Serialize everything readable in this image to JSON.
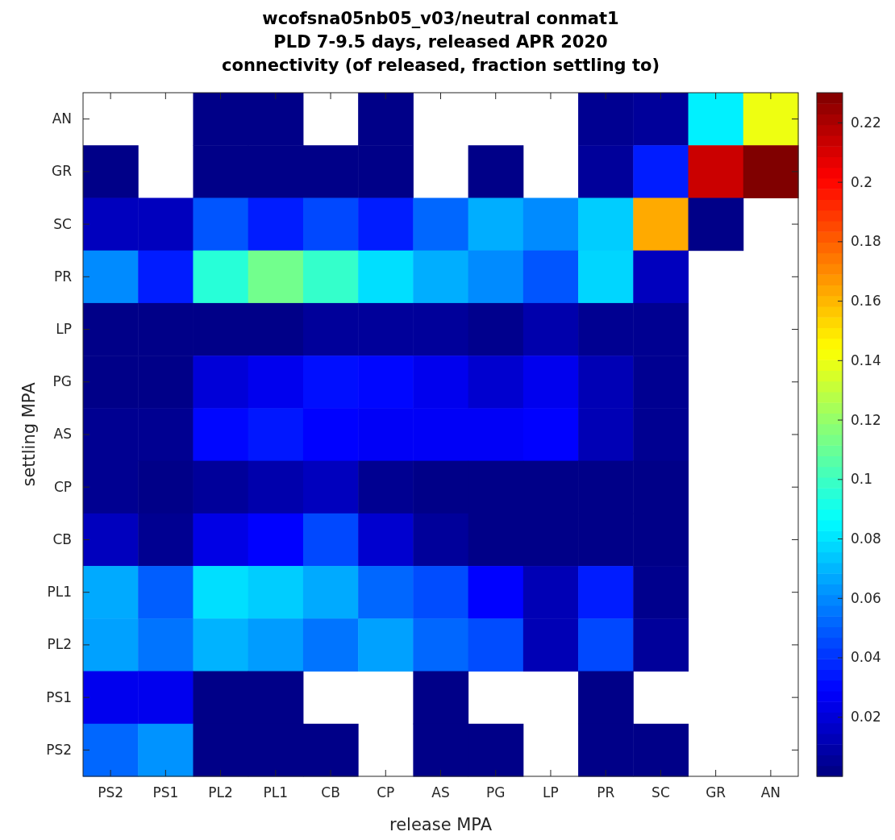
{
  "chart_data": {
    "type": "heatmap",
    "title": "wcofsna05nb05_v03/neutral conmat1\nPLD 7-9.5 days, released APR 2020\nconnectivity (of released, fraction settling to)",
    "xlabel": "release MPA",
    "ylabel": "settling MPA",
    "categories": [
      "PS2",
      "PS1",
      "PL2",
      "PL1",
      "CB",
      "CP",
      "AS",
      "PG",
      "LP",
      "PR",
      "SC",
      "GR",
      "AN"
    ],
    "y_categories": [
      "AN",
      "GR",
      "SC",
      "PR",
      "LP",
      "PG",
      "AS",
      "CP",
      "CB",
      "PL1",
      "PL2",
      "PS1",
      "PS2"
    ],
    "cells": [
      [
        null,
        null,
        0.002,
        0.002,
        null,
        0.002,
        null,
        null,
        null,
        0.004,
        0.006,
        0.083,
        0.14
      ],
      [
        0.002,
        null,
        0.002,
        0.002,
        0.002,
        0.002,
        null,
        0.002,
        null,
        0.006,
        0.035,
        0.213,
        0.23
      ],
      [
        0.014,
        0.014,
        0.048,
        0.035,
        0.045,
        0.035,
        0.052,
        0.068,
        0.06,
        0.075,
        0.163,
        0.002,
        null
      ],
      [
        0.06,
        0.035,
        0.095,
        0.112,
        0.098,
        0.079,
        0.068,
        0.06,
        0.048,
        0.077,
        0.014,
        null,
        null
      ],
      [
        0.002,
        0.002,
        0.002,
        0.002,
        0.006,
        0.006,
        0.006,
        0.003,
        0.01,
        0.004,
        0.004,
        null,
        null
      ],
      [
        0.002,
        0.002,
        0.02,
        0.025,
        0.032,
        0.03,
        0.025,
        0.018,
        0.025,
        0.012,
        0.004,
        null,
        null
      ],
      [
        0.004,
        0.004,
        0.03,
        0.034,
        0.029,
        0.027,
        0.027,
        0.027,
        0.029,
        0.012,
        0.004,
        null,
        null
      ],
      [
        0.004,
        0.002,
        0.006,
        0.01,
        0.014,
        0.004,
        0.002,
        0.002,
        0.002,
        0.002,
        0.002,
        null,
        null
      ],
      [
        0.014,
        0.004,
        0.023,
        0.029,
        0.045,
        0.018,
        0.006,
        0.002,
        0.002,
        0.002,
        0.002,
        null,
        null
      ],
      [
        0.067,
        0.05,
        0.079,
        0.075,
        0.067,
        0.052,
        0.046,
        0.029,
        0.012,
        0.035,
        0.003,
        null,
        null
      ],
      [
        0.065,
        0.055,
        0.069,
        0.064,
        0.055,
        0.065,
        0.052,
        0.046,
        0.012,
        0.045,
        0.006,
        null,
        null
      ],
      [
        0.025,
        0.025,
        0.002,
        0.002,
        null,
        null,
        0.002,
        null,
        null,
        0.002,
        null,
        null,
        null
      ],
      [
        0.052,
        0.062,
        0.002,
        0.002,
        0.002,
        null,
        0.002,
        0.002,
        null,
        0.002,
        0.002,
        null,
        null
      ]
    ],
    "clim": [
      0,
      0.23
    ],
    "cticks": [
      0.02,
      0.04,
      0.06,
      0.08,
      {
        "value": 0.1,
        "label": "0.1"
      },
      0.12,
      0.14,
      0.16,
      0.18,
      {
        "value": 0.2,
        "label": "0.2"
      },
      0.22
    ]
  }
}
